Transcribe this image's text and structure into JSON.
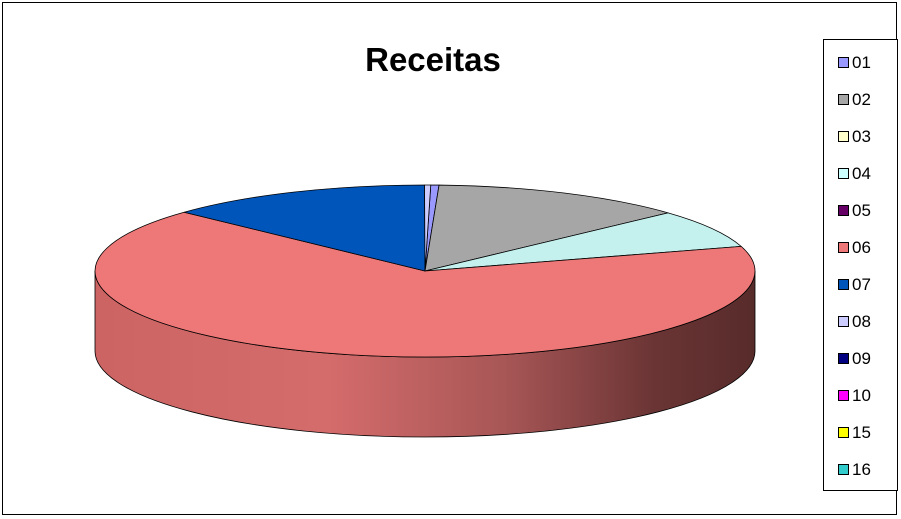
{
  "chart_data": {
    "type": "pie",
    "title": "Receitas",
    "legend_position": "right",
    "three_d": true,
    "categories": [
      "01",
      "02",
      "03",
      "04",
      "05",
      "06",
      "07",
      "08",
      "09",
      "10",
      "15",
      "16"
    ],
    "values": [
      0.4,
      12.5,
      0,
      7.2,
      0,
      66.6,
      13.0,
      0.3,
      0,
      0,
      0,
      0
    ],
    "colors": [
      "#9999FF",
      "#A6A6A6",
      "#FFFFCC",
      "#CCFFFF",
      "#660066",
      "#EE7777",
      "#0055BB",
      "#CCCCFF",
      "#000080",
      "#FF00FF",
      "#FFFF00",
      "#33CCCC"
    ],
    "top_colors": [
      "#9999FF",
      "#A6A6A6",
      "#FFFFCC",
      "#C4F1EE",
      "#660066",
      "#EE7777",
      "#0055BB",
      "#CCCCFF",
      "#000080",
      "#FF00FF",
      "#FFFF00",
      "#33CCCC"
    ]
  }
}
